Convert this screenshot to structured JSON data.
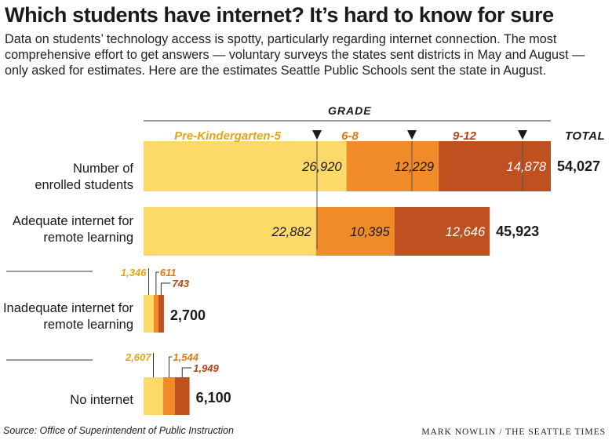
{
  "title": "Which students have internet? It’s hard to know for sure",
  "subtitle": "Data on students’ technology access is spotty, particularly regarding internet connection. The most comprehensive effort to get answers — voluntary surveys the states sent districts in May and August — only asked for estimates. Here are the estimates Seattle Public Schools sent the state in August.",
  "source": "Source: Office of Superintendent of Public Instruction",
  "credit": "MARK NOWLIN / THE SEATTLE TIMES",
  "colors": {
    "pre_k_5": "#fdd96a",
    "grades_6_8": "#f18a28",
    "grades_9_12": "#c0501f",
    "label_pre_k_5": "#e6a314",
    "label_6_8": "#e07a14",
    "label_9_12": "#b04416"
  },
  "chart_data": {
    "type": "bar",
    "orientation": "horizontal",
    "stacked": true,
    "group_title": "GRADE",
    "total_header": "TOTAL",
    "series": [
      {
        "name": "Pre-Kindergarten-5",
        "values": [
          26920,
          22882,
          1346,
          2607
        ]
      },
      {
        "name": "6-8",
        "values": [
          12229,
          10395,
          611,
          1544
        ]
      },
      {
        "name": "9-12",
        "values": [
          14878,
          12646,
          743,
          1949
        ]
      }
    ],
    "categories": [
      "Number of enrolled students",
      "Adequate internet for remote learning",
      "Inadequate internet for remote learning",
      "No internet"
    ],
    "totals": [
      54027,
      45923,
      2700,
      6100
    ],
    "value_labels": [
      [
        "26,920",
        "12,229",
        "14,878"
      ],
      [
        "22,882",
        "10,395",
        "12,646"
      ],
      [
        "1,346",
        "611",
        "743"
      ],
      [
        "2,607",
        "1,544",
        "1,949"
      ]
    ],
    "total_labels": [
      "54,027",
      "45,923",
      "2,700",
      "6,100"
    ]
  }
}
